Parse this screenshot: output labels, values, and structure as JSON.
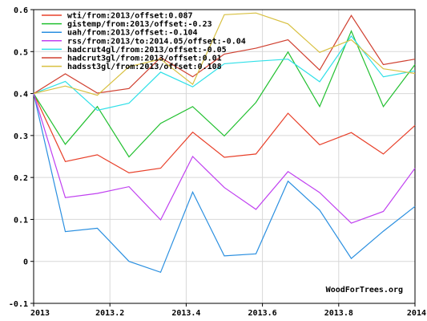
{
  "chart_data": {
    "type": "line",
    "title": "",
    "xlabel": "",
    "ylabel": "",
    "xlim": [
      2013,
      2014
    ],
    "ylim": [
      -0.1,
      0.6
    ],
    "x_ticks": [
      "2013",
      "2013.2",
      "2013.4",
      "2013.6",
      "2013.8",
      "2014"
    ],
    "y_ticks": [
      "-0.1",
      "0",
      "0.1",
      "0.2",
      "0.3",
      "0.4",
      "0.5",
      "0.6"
    ],
    "grid": true,
    "legend_position": "top-left",
    "credit": "WoodForTrees.org",
    "x": [
      2013,
      2013.083,
      2013.167,
      2013.25,
      2013.333,
      2013.417,
      2013.5,
      2013.583,
      2013.667,
      2013.75,
      2013.833,
      2013.917,
      2014
    ],
    "series": [
      {
        "name": "wti/from:2013/offset:0.087",
        "color": "#e8402a",
        "values": [
          0.4,
          0.238,
          0.254,
          0.211,
          0.222,
          0.308,
          0.248,
          0.256,
          0.353,
          0.278,
          0.307,
          0.256,
          0.324
        ]
      },
      {
        "name": "gistemp/from:2013/offset:-0.23",
        "color": "#22c030",
        "values": [
          0.4,
          0.279,
          0.369,
          0.249,
          0.329,
          0.369,
          0.299,
          0.379,
          0.499,
          0.369,
          0.549,
          0.369,
          0.469
        ]
      },
      {
        "name": "uah/from:2013/offset:-0.104",
        "color": "#2a8fe0",
        "values": [
          0.4,
          0.071,
          0.079,
          0.0,
          -0.026,
          0.165,
          0.013,
          0.018,
          0.191,
          0.122,
          0.007,
          0.072,
          0.131
        ]
      },
      {
        "name": "rss/from:2013/to:2014.05/offset:-0.04",
        "color": "#c040f0",
        "values": [
          0.4,
          0.152,
          0.162,
          0.178,
          0.099,
          0.25,
          0.176,
          0.124,
          0.214,
          0.164,
          0.091,
          0.119,
          0.222
        ]
      },
      {
        "name": "hadcrut4gl/from:2013/offset:-0.05",
        "color": "#30e0e8",
        "values": [
          0.4,
          0.429,
          0.36,
          0.377,
          0.451,
          0.416,
          0.471,
          0.477,
          0.482,
          0.428,
          0.537,
          0.44,
          0.454
        ]
      },
      {
        "name": "hadcrut3gl/from:2013/offset:0.01",
        "color": "#d04030",
        "values": [
          0.4,
          0.447,
          0.401,
          0.412,
          0.486,
          0.44,
          0.494,
          0.508,
          0.528,
          0.456,
          0.586,
          0.469,
          0.482
        ]
      },
      {
        "name": "hadsst3gl/from:2013/offset:0.108",
        "color": "#d8c040",
        "values": [
          0.4,
          0.418,
          0.396,
          0.464,
          0.482,
          0.422,
          0.588,
          0.592,
          0.566,
          0.498,
          0.528,
          0.459,
          0.448
        ]
      }
    ]
  }
}
